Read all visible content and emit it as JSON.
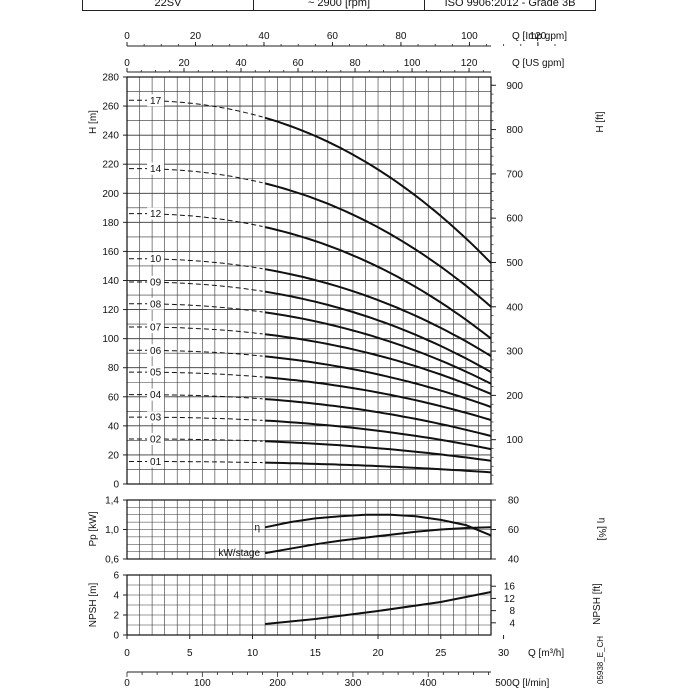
{
  "header": {
    "pump_model": "22SV",
    "speed": "~ 2900 [rpm]",
    "standard": "ISO 9906:2012 - Grade 3B"
  },
  "code": "05938_E_CH",
  "chart_data": [
    {
      "type": "line",
      "name": "head-curves",
      "ylabel": "H [m]",
      "ylabel_right": "H [ft]",
      "xlabel_top_imp": "Q [Imp gpm]",
      "xlabel_top_us": "Q [US gpm]",
      "x_unit": "m3/h",
      "xlim": [
        0,
        29
      ],
      "ylim": [
        0,
        280
      ],
      "y_ticks": [
        0,
        20,
        40,
        60,
        80,
        100,
        120,
        140,
        160,
        180,
        200,
        220,
        240,
        260,
        280
      ],
      "y_right_ticks": [
        100,
        200,
        300,
        400,
        500,
        600,
        700,
        800,
        900
      ],
      "imp_gpm_ticks": [
        0,
        20,
        40,
        60,
        80,
        100,
        120
      ],
      "us_gpm_ticks": [
        0,
        20,
        40,
        60,
        80,
        100,
        120
      ],
      "grid": true,
      "dash_end_x": 11,
      "series": [
        {
          "name": "01",
          "h0": 15.5,
          "hend": 8
        },
        {
          "name": "02",
          "h0": 31,
          "hend": 16
        },
        {
          "name": "03",
          "h0": 46,
          "hend": 24
        },
        {
          "name": "04",
          "h0": 61.5,
          "hend": 33
        },
        {
          "name": "05",
          "h0": 77,
          "hend": 44
        },
        {
          "name": "06",
          "h0": 92,
          "hend": 53
        },
        {
          "name": "07",
          "h0": 108,
          "hend": 62
        },
        {
          "name": "08",
          "h0": 124,
          "hend": 69
        },
        {
          "name": "09",
          "h0": 139,
          "hend": 77
        },
        {
          "name": "10",
          "h0": 155,
          "hend": 88
        },
        {
          "name": "12",
          "h0": 186,
          "hend": 100
        },
        {
          "name": "14",
          "h0": 217,
          "hend": 122
        },
        {
          "name": "17",
          "h0": 264,
          "hend": 152
        }
      ]
    },
    {
      "type": "line",
      "name": "power-efficiency",
      "ylabel": "Pp [kW]",
      "ylabel_right": "η [%]",
      "ylim": [
        0.6,
        1.4
      ],
      "y_ticks": [
        "0,6",
        "1,0",
        "1,4"
      ],
      "y2lim": [
        40,
        80
      ],
      "y2_ticks": [
        40,
        60,
        80
      ],
      "series": [
        {
          "name": "η",
          "x": [
            11,
            13,
            15,
            17,
            19,
            21,
            23,
            25,
            27,
            29
          ],
          "y": [
            61.5,
            65,
            67.5,
            69,
            70,
            70,
            69,
            66.5,
            63,
            56
          ]
        },
        {
          "name": "kW/stage",
          "x": [
            11,
            13,
            15,
            17,
            19,
            21,
            23,
            25,
            27,
            29
          ],
          "y": [
            0.68,
            0.74,
            0.8,
            0.85,
            0.89,
            0.93,
            0.97,
            1.0,
            1.02,
            1.03
          ]
        }
      ]
    },
    {
      "type": "line",
      "name": "npsh",
      "ylabel": "NPSH [m]",
      "ylabel_right": "NPSH [ft]",
      "ylim": [
        0,
        6
      ],
      "y_ticks": [
        0,
        2,
        4,
        6
      ],
      "y_right_ticks": [
        4,
        8,
        12,
        16
      ],
      "xlabel": "Q [m³/h]",
      "x_ticks": [
        0,
        5,
        10,
        15,
        20,
        25,
        30
      ],
      "xlabel_lmin": "Q [l/min]",
      "x_lmin_ticks": [
        0,
        100,
        200,
        300,
        400,
        500
      ],
      "series": [
        {
          "name": "NPSH",
          "x": [
            11,
            15,
            20,
            25,
            29
          ],
          "y": [
            1.1,
            1.6,
            2.4,
            3.3,
            4.3
          ]
        }
      ]
    }
  ]
}
